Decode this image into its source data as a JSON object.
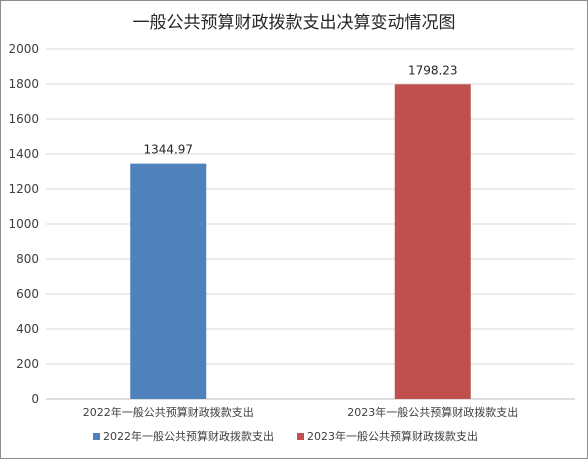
{
  "chart_data": {
    "type": "bar",
    "title": "一般公共预算财政拨款支出决算变动情况图",
    "categories": [
      "2022年一般公共预算财政拨款支出",
      "2023年一般公共预算财政拨款支出"
    ],
    "values": [
      1344.97,
      1798.23
    ],
    "value_labels": [
      "1344.97",
      "1798.23"
    ],
    "colors": [
      "#4F81BD",
      "#C0504D"
    ],
    "ylim": [
      0,
      2000
    ],
    "y_ticks": [
      0,
      200,
      400,
      600,
      800,
      1000,
      1200,
      1400,
      1600,
      1800,
      2000
    ],
    "grid": true,
    "legend": {
      "position": "bottom",
      "entries": [
        "2022年一般公共预算财政拨款支出",
        "2023年一般公共预算财政拨款支出"
      ]
    }
  }
}
